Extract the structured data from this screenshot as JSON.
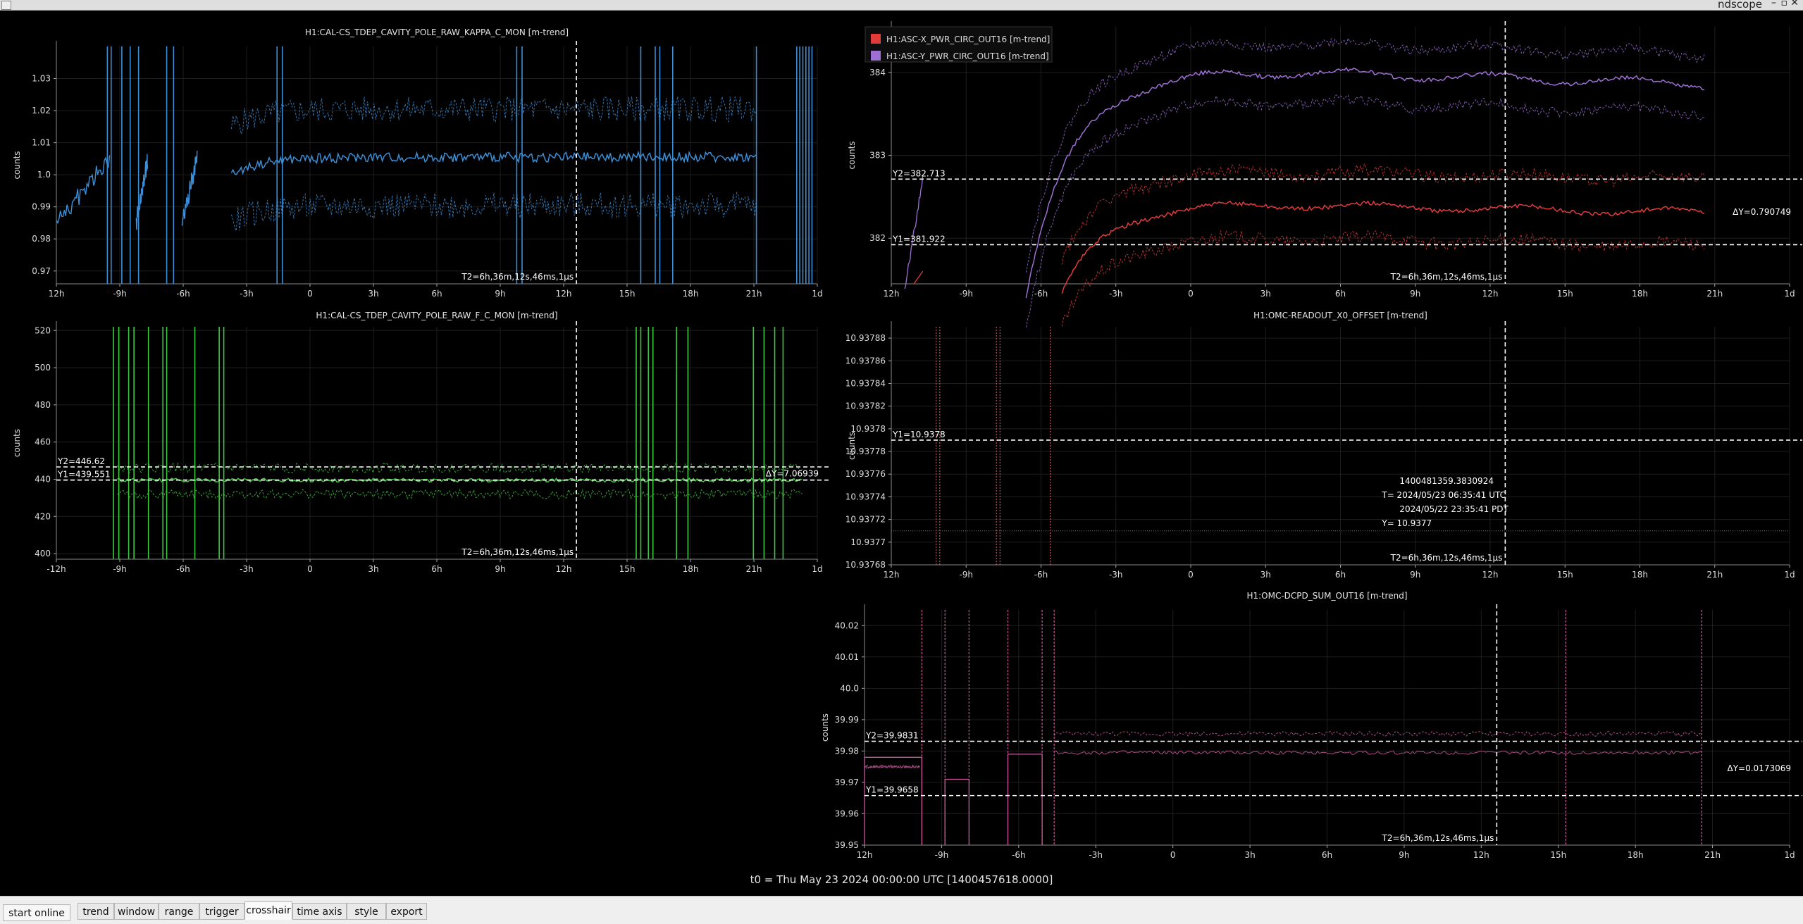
{
  "app": {
    "title": "ndscope",
    "minimize": "–",
    "maximize": "▫",
    "close": "✕"
  },
  "footer": {
    "t0": "t0 = Thu May 23 2024 00:00:00 UTC [1400457618.0000]"
  },
  "toolbar": {
    "start_online": "start online",
    "tabs": [
      {
        "label": "trend"
      },
      {
        "label": "window"
      },
      {
        "label": "range"
      },
      {
        "label": "trigger"
      },
      {
        "label": "crosshair",
        "active": true
      },
      {
        "label": "time axis"
      },
      {
        "label": "style"
      },
      {
        "label": "export"
      }
    ]
  },
  "chart_data": [
    {
      "id": "kappa",
      "type": "line",
      "title": "H1:CAL-CS_TDEP_CAVITY_POLE_RAW_KAPPA_C_MON [m-trend]",
      "ylabel": "counts",
      "ylim": [
        0.966,
        1.04
      ],
      "yticks": [
        {
          "v": 0.97,
          "label": "0.97"
        },
        {
          "v": 0.98,
          "label": "0.98"
        },
        {
          "v": 0.99,
          "label": "0.99"
        },
        {
          "v": 1.0,
          "label": "1.0"
        },
        {
          "v": 1.01,
          "label": "1.01"
        },
        {
          "v": 1.02,
          "label": "1.02"
        },
        {
          "v": 1.03,
          "label": "1.03"
        }
      ],
      "xticks": [
        "12h",
        "-9h",
        "-6h",
        "-3h",
        "0",
        "3h",
        "6h",
        "9h",
        "12h",
        "15h",
        "18h",
        "21h",
        "1d"
      ],
      "color": "#3c8fd6",
      "crosshair": {
        "t2": "T2=6h,36m,12s,46ms,1µs"
      },
      "grid": true
    },
    {
      "id": "asc",
      "type": "line",
      "ylabel": "counts",
      "ylim": [
        381.45,
        384.55
      ],
      "yticks": [
        {
          "v": 382,
          "label": "382"
        },
        {
          "v": 383,
          "label": "383"
        },
        {
          "v": 384,
          "label": "384"
        }
      ],
      "xticks": [
        "12h",
        "-9h",
        "-6h",
        "-3h",
        "0",
        "3h",
        "6h",
        "9h",
        "12h",
        "15h",
        "18h",
        "21h",
        "1d"
      ],
      "series": [
        {
          "name": "H1:ASC-X_PWR_CIRC_OUT16 [m-trend]",
          "color": "#e23b3b"
        },
        {
          "name": "H1:ASC-Y_PWR_CIRC_OUT16 [m-trend]",
          "color": "#9e6fd3"
        }
      ],
      "crosshair": {
        "t2": "T2=6h,36m,12s,46ms,1µs",
        "y1": 381.922,
        "y1_label": "Y1=381.922",
        "y2": 382.713,
        "y2_label": "Y2=382.713",
        "dy_label": "ΔY=0.790749"
      },
      "grid": true
    },
    {
      "id": "fc",
      "type": "line",
      "title": "H1:CAL-CS_TDEP_CAVITY_POLE_RAW_F_C_MON [m-trend]",
      "ylabel": "counts",
      "ylim": [
        397,
        522
      ],
      "yticks": [
        {
          "v": 400,
          "label": "400"
        },
        {
          "v": 420,
          "label": "420"
        },
        {
          "v": 440,
          "label": "440"
        },
        {
          "v": 460,
          "label": "460"
        },
        {
          "v": 480,
          "label": "480"
        },
        {
          "v": 500,
          "label": "500"
        },
        {
          "v": 520,
          "label": "520"
        }
      ],
      "xticks": [
        "-12h",
        "-9h",
        "-6h",
        "-3h",
        "0",
        "3h",
        "6h",
        "9h",
        "12h",
        "15h",
        "18h",
        "21h",
        "1d"
      ],
      "color": "#3fc83f",
      "crosshair": {
        "t2": "T2=6h,36m,12s,46ms,1µs",
        "y1": 439.551,
        "y1_label": "Y1=439.551",
        "y2": 446.62,
        "y2_label": "Y2=446.62",
        "dy_label": "ΔY=7.06939"
      },
      "grid": true
    },
    {
      "id": "omc_readout",
      "type": "line",
      "title": "H1:OMC-READOUT_X0_OFFSET [m-trend]",
      "ylabel": "counts",
      "ylim": [
        10.93768,
        10.93789
      ],
      "yticks": [
        {
          "v": 10.93768,
          "label": "10.93768"
        },
        {
          "v": 10.9377,
          "label": "10.9377"
        },
        {
          "v": 10.93772,
          "label": "10.93772"
        },
        {
          "v": 10.93774,
          "label": "10.93774"
        },
        {
          "v": 10.93776,
          "label": "10.93776"
        },
        {
          "v": 10.93778,
          "label": "10.93778"
        },
        {
          "v": 10.9378,
          "label": "10.9378"
        },
        {
          "v": 10.93782,
          "label": "10.93782"
        },
        {
          "v": 10.93784,
          "label": "10.93784"
        },
        {
          "v": 10.93786,
          "label": "10.93786"
        },
        {
          "v": 10.93788,
          "label": "10.93788"
        }
      ],
      "xticks": [
        "12h",
        "-9h",
        "-6h",
        "-3h",
        "0",
        "3h",
        "6h",
        "9h",
        "12h",
        "15h",
        "18h",
        "21h",
        "1d"
      ],
      "color": "#d46a6a",
      "crosshair": {
        "t2": "T2=6h,36m,12s,46ms,1µs",
        "y1": 10.93779,
        "y1_label": "Y1=10.9378",
        "readout": [
          "1400481359.3830924",
          "T= 2024/05/23 06:35:41 UTC",
          "2024/05/22 23:35:41 PDT",
          "Y= 10.9377"
        ]
      },
      "grid": true
    },
    {
      "id": "dcpd",
      "type": "line",
      "title": "H1:OMC-DCPD_SUM_OUT16 [m-trend]",
      "ylabel": "counts",
      "ylim": [
        39.95,
        40.025
      ],
      "yticks": [
        {
          "v": 39.95,
          "label": "39.95"
        },
        {
          "v": 39.96,
          "label": "39.96"
        },
        {
          "v": 39.97,
          "label": "39.97"
        },
        {
          "v": 39.98,
          "label": "39.98"
        },
        {
          "v": 39.99,
          "label": "39.99"
        },
        {
          "v": 40.0,
          "label": "40.0"
        },
        {
          "v": 40.01,
          "label": "40.01"
        },
        {
          "v": 40.02,
          "label": "40.02"
        }
      ],
      "xticks": [
        "12h",
        "-9h",
        "-6h",
        "-3h",
        "0",
        "3h",
        "6h",
        "9h",
        "12h",
        "15h",
        "18h",
        "21h",
        "1d"
      ],
      "color": "#c9589b",
      "crosshair": {
        "t2": "T2=6h,36m,12s,46ms,1µs",
        "y1": 39.9658,
        "y1_label": "Y1=39.9658",
        "y2": 39.9831,
        "y2_label": "Y2=39.9831",
        "dy_label": "ΔY=0.0173069"
      },
      "grid": true
    }
  ]
}
